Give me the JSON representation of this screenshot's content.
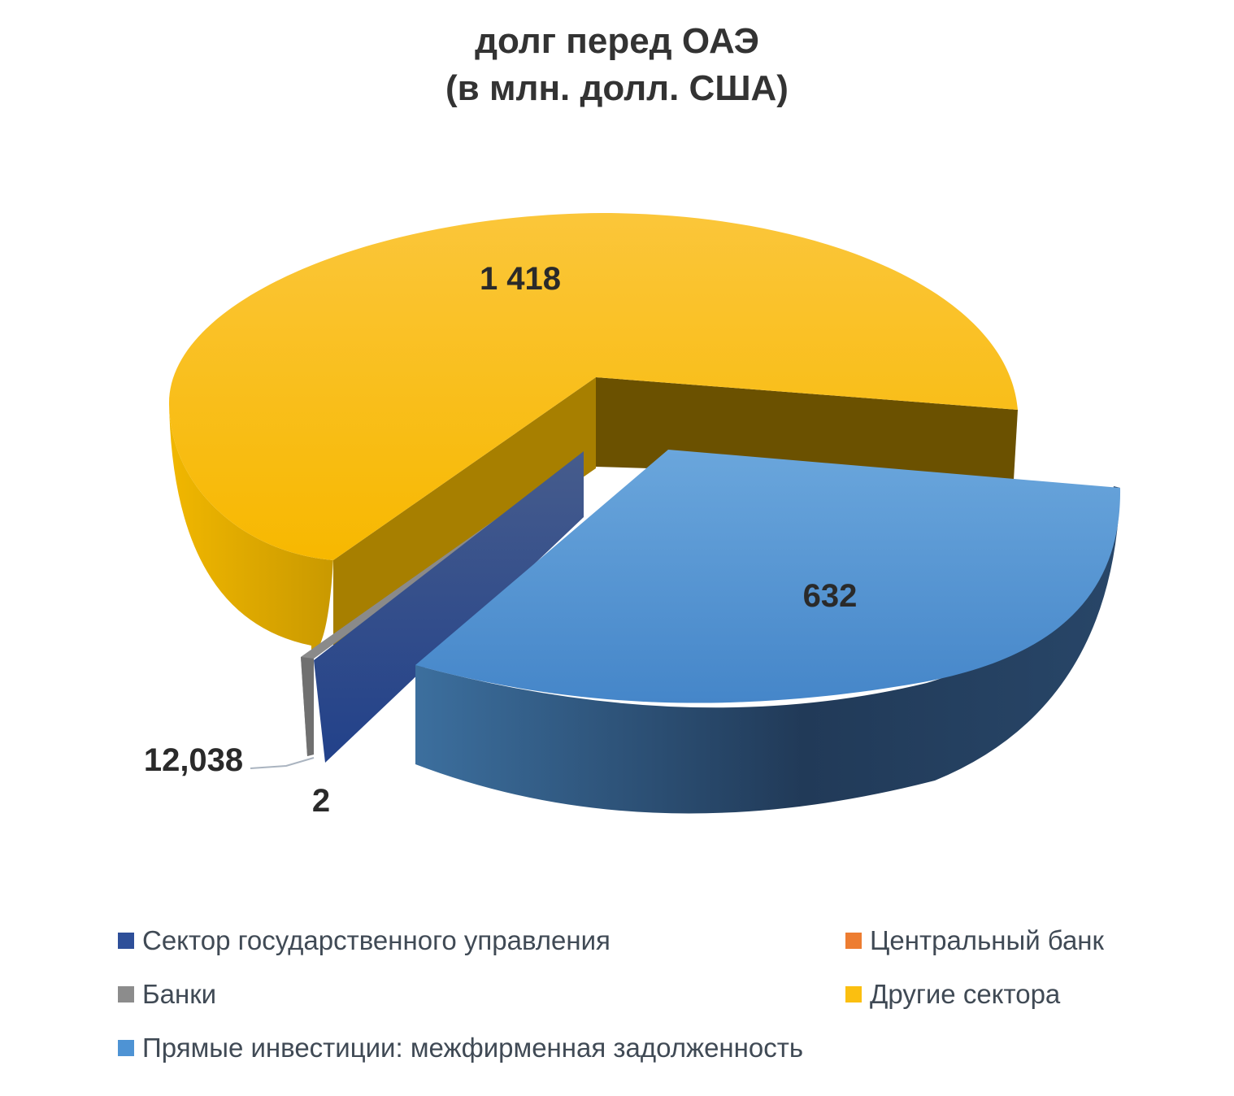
{
  "title_line1": "долг перед ОАЭ",
  "title_line2": "(в млн. долл. США)",
  "chart_data": {
    "type": "pie",
    "title": "долг перед ОАЭ (в млн. долл. США)",
    "legend_position": "bottom",
    "slices": [
      {
        "name": "Сектор государственного управления",
        "value": 12.038,
        "label": "12,038",
        "color": "#2e4f99"
      },
      {
        "name": "Центральный банк",
        "value": 0,
        "label": "",
        "color": "#ed7d31"
      },
      {
        "name": "Банки",
        "value": 2,
        "label": "2",
        "color": "#8c8c8c"
      },
      {
        "name": "Другие сектора",
        "value": 1418,
        "label": "1 418",
        "color": "#fbbf10"
      },
      {
        "name": "Прямые инвестиции: межфирменная задолженность",
        "value": 632,
        "label": "632",
        "color": "#4e93d4"
      }
    ]
  }
}
